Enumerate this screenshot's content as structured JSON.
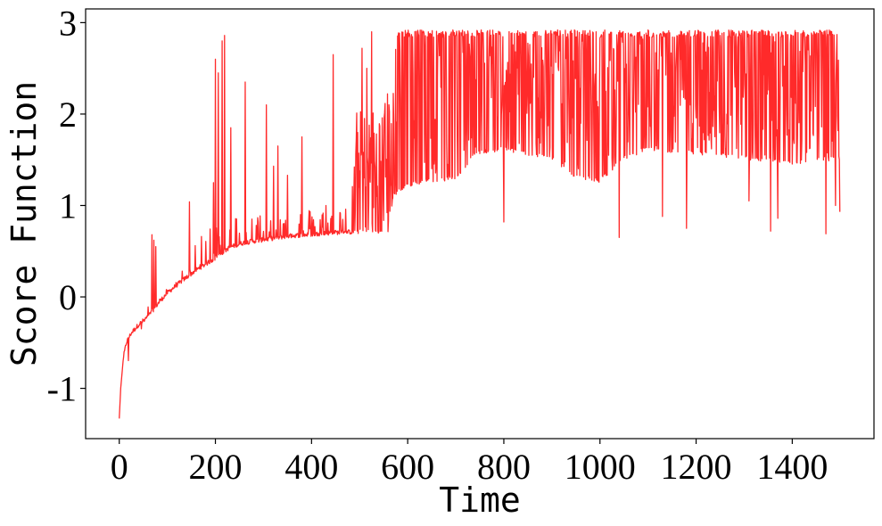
{
  "chart_data": {
    "type": "line",
    "title": "",
    "xlabel": "Time",
    "ylabel": "Score Function",
    "xlim": [
      -70,
      1570
    ],
    "ylim": [
      -1.55,
      3.15
    ],
    "xticks": [
      0,
      200,
      400,
      600,
      800,
      1000,
      1200,
      1400
    ],
    "xtick_labels": [
      "0",
      "200",
      "400",
      "600",
      "800",
      "1000",
      "1200",
      "1400"
    ],
    "yticks": [
      -1,
      0,
      1,
      2,
      3
    ],
    "ytick_labels": [
      "-1",
      "0",
      "1",
      "2",
      "3"
    ],
    "grid": false,
    "legend": "none",
    "series": [
      {
        "color": "#ff2a2a",
        "line_width": 1.3,
        "n_points": 1500,
        "x_start": 0,
        "x_end": 1499,
        "baseline_keypoints": [
          {
            "x": 0,
            "y": -1.33
          },
          {
            "x": 3,
            "y": -1.0
          },
          {
            "x": 8,
            "y": -0.7
          },
          {
            "x": 15,
            "y": -0.52
          },
          {
            "x": 25,
            "y": -0.42
          },
          {
            "x": 40,
            "y": -0.33
          },
          {
            "x": 60,
            "y": -0.24
          },
          {
            "x": 80,
            "y": -0.1
          },
          {
            "x": 100,
            "y": 0.02
          },
          {
            "x": 130,
            "y": 0.15
          },
          {
            "x": 160,
            "y": 0.27
          },
          {
            "x": 200,
            "y": 0.4
          },
          {
            "x": 230,
            "y": 0.52
          },
          {
            "x": 260,
            "y": 0.57
          },
          {
            "x": 300,
            "y": 0.6
          },
          {
            "x": 350,
            "y": 0.64
          },
          {
            "x": 400,
            "y": 0.66
          },
          {
            "x": 450,
            "y": 0.68
          },
          {
            "x": 500,
            "y": 0.69
          },
          {
            "x": 560,
            "y": 0.7
          },
          {
            "x": 570,
            "y": 1.1
          },
          {
            "x": 600,
            "y": 1.2
          },
          {
            "x": 650,
            "y": 1.25
          },
          {
            "x": 700,
            "y": 1.28
          },
          {
            "x": 740,
            "y": 1.55
          },
          {
            "x": 800,
            "y": 1.6
          },
          {
            "x": 900,
            "y": 1.5
          },
          {
            "x": 950,
            "y": 1.3
          },
          {
            "x": 1000,
            "y": 1.25
          },
          {
            "x": 1050,
            "y": 1.5
          },
          {
            "x": 1100,
            "y": 1.6
          },
          {
            "x": 1200,
            "y": 1.55
          },
          {
            "x": 1300,
            "y": 1.5
          },
          {
            "x": 1400,
            "y": 1.45
          },
          {
            "x": 1499,
            "y": 1.5
          }
        ],
        "top_keypoints": [
          {
            "x": 0,
            "y": -1.33
          },
          {
            "x": 60,
            "y": -0.1
          },
          {
            "x": 100,
            "y": 0.1
          },
          {
            "x": 200,
            "y": 0.9
          },
          {
            "x": 480,
            "y": 1.0
          },
          {
            "x": 490,
            "y": 2.05
          },
          {
            "x": 540,
            "y": 2.1
          },
          {
            "x": 560,
            "y": 2.3
          },
          {
            "x": 580,
            "y": 2.92
          },
          {
            "x": 1499,
            "y": 2.92
          }
        ],
        "spikes": [
          {
            "x": 68,
            "y": 0.68
          },
          {
            "x": 72,
            "y": 0.62
          },
          {
            "x": 76,
            "y": 0.55
          },
          {
            "x": 146,
            "y": 1.04
          },
          {
            "x": 196,
            "y": 1.25
          },
          {
            "x": 200,
            "y": 2.6
          },
          {
            "x": 206,
            "y": 2.45
          },
          {
            "x": 214,
            "y": 2.8
          },
          {
            "x": 219,
            "y": 2.86
          },
          {
            "x": 232,
            "y": 1.85
          },
          {
            "x": 262,
            "y": 2.35
          },
          {
            "x": 306,
            "y": 2.1
          },
          {
            "x": 321,
            "y": 1.43
          },
          {
            "x": 330,
            "y": 1.65
          },
          {
            "x": 350,
            "y": 1.33
          },
          {
            "x": 380,
            "y": 1.75
          },
          {
            "x": 430,
            "y": 1.0
          },
          {
            "x": 445,
            "y": 2.65
          },
          {
            "x": 505,
            "y": 2.72
          },
          {
            "x": 515,
            "y": 2.5
          },
          {
            "x": 525,
            "y": 2.9
          },
          {
            "x": 800,
            "y": 0.82
          },
          {
            "x": 1040,
            "y": 0.65
          },
          {
            "x": 1130,
            "y": 0.88
          },
          {
            "x": 1180,
            "y": 0.75
          },
          {
            "x": 1310,
            "y": 1.05
          },
          {
            "x": 1355,
            "y": 0.72
          },
          {
            "x": 1370,
            "y": 0.86
          },
          {
            "x": 1470,
            "y": 0.69
          },
          {
            "x": 1490,
            "y": 1.0
          }
        ],
        "end_value": 0.93
      }
    ]
  }
}
